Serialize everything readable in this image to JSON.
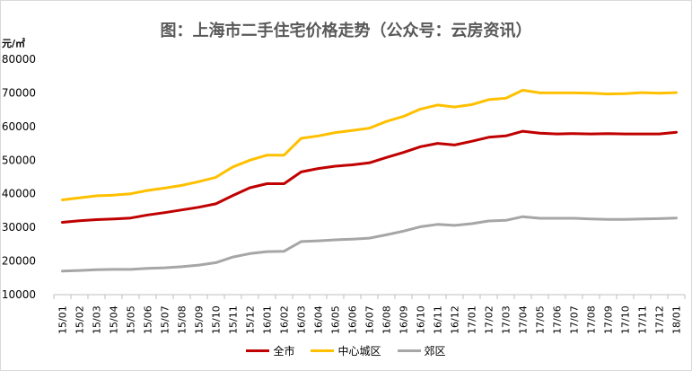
{
  "chart_data": {
    "type": "line",
    "title": "图：上海市二手住宅价格走势（公众号：云房资讯）",
    "ylabel": "元/㎡",
    "xlabel": "",
    "ylim": [
      10000,
      80000
    ],
    "yticks": [
      10000,
      20000,
      30000,
      40000,
      50000,
      60000,
      70000,
      80000
    ],
    "categories": [
      "15/01",
      "15/02",
      "15/03",
      "15/04",
      "15/05",
      "15/06",
      "15/07",
      "15/08",
      "15/09",
      "15/10",
      "15/11",
      "15/12",
      "16/01",
      "16/02",
      "16/03",
      "16/04",
      "16/05",
      "16/06",
      "16/07",
      "16/08",
      "16/09",
      "16/10",
      "16/11",
      "16/12",
      "17/01",
      "17/02",
      "17/03",
      "17/04",
      "17/05",
      "17/06",
      "17/07",
      "17/08",
      "17/09",
      "17/10",
      "17/11",
      "17/12",
      "18/01"
    ],
    "series": [
      {
        "name": "全市",
        "color": "#c00000",
        "values": [
          31500,
          32000,
          32300,
          32500,
          32800,
          33700,
          34400,
          35200,
          36000,
          37000,
          39500,
          41800,
          43000,
          43000,
          46500,
          47500,
          48200,
          48600,
          49200,
          50800,
          52300,
          54000,
          55000,
          54500,
          55600,
          56800,
          57200,
          58600,
          58000,
          57800,
          57900,
          57800,
          57900,
          57800,
          57800,
          57800,
          58300
        ]
      },
      {
        "name": "中心城区",
        "color": "#ffc000",
        "values": [
          38200,
          38800,
          39400,
          39600,
          40000,
          41000,
          41700,
          42500,
          43600,
          44900,
          48000,
          50000,
          51500,
          51500,
          56500,
          57200,
          58200,
          58800,
          59500,
          61500,
          63000,
          65200,
          66400,
          65800,
          66500,
          68000,
          68400,
          70800,
          70000,
          70000,
          70000,
          69900,
          69700,
          69800,
          70100,
          69900,
          70100
        ]
      },
      {
        "name": "郊区",
        "color": "#a6a6a6",
        "values": [
          17000,
          17200,
          17400,
          17500,
          17500,
          17800,
          18000,
          18300,
          18800,
          19500,
          21200,
          22200,
          22800,
          22900,
          25800,
          26000,
          26300,
          26500,
          26800,
          27800,
          28900,
          30200,
          30900,
          30600,
          31100,
          31900,
          32100,
          33200,
          32700,
          32700,
          32700,
          32500,
          32400,
          32400,
          32500,
          32600,
          32800
        ]
      }
    ],
    "legend": {
      "position": "bottom"
    },
    "grid": false
  }
}
